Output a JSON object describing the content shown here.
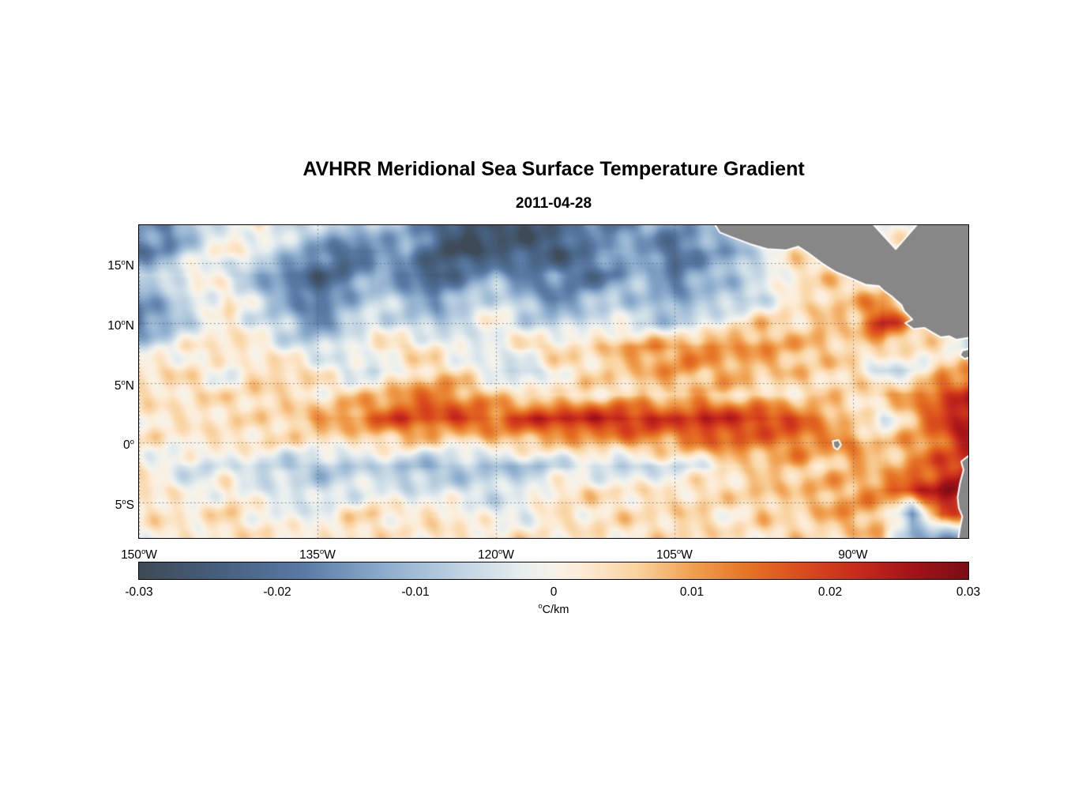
{
  "title": "AVHRR Meridional Sea Surface Temperature Gradient",
  "date": "2011-04-28",
  "colorbar": {
    "range": [
      -0.03,
      0.03
    ],
    "ticks": [
      {
        "value": -0.03,
        "label": "-0.03"
      },
      {
        "value": -0.02,
        "label": "-0.02"
      },
      {
        "value": -0.01,
        "label": "-0.01"
      },
      {
        "value": 0,
        "label": "0"
      },
      {
        "value": 0.01,
        "label": "0.01"
      },
      {
        "value": 0.02,
        "label": "0.02"
      },
      {
        "value": 0.03,
        "label": "0.03"
      }
    ],
    "unit": {
      "sup": "o",
      "text": "C/km"
    },
    "stops": [
      [
        -0.03,
        "#3e4a55"
      ],
      [
        -0.024,
        "#46607f"
      ],
      [
        -0.018,
        "#5a7ba6"
      ],
      [
        -0.012,
        "#8fafcf"
      ],
      [
        -0.006,
        "#c6d8e4"
      ],
      [
        -0.002,
        "#e9efef"
      ],
      [
        0,
        "#f7f3e8"
      ],
      [
        0.002,
        "#fcecd7"
      ],
      [
        0.006,
        "#f9d3a0"
      ],
      [
        0.01,
        "#f0a150"
      ],
      [
        0.014,
        "#e57425"
      ],
      [
        0.018,
        "#da4c1d"
      ],
      [
        0.022,
        "#c62a1c"
      ],
      [
        0.026,
        "#a31318"
      ],
      [
        0.03,
        "#7c0d14"
      ]
    ]
  },
  "chart_data": {
    "type": "heatmap",
    "title": "AVHRR Meridional Sea Surface Temperature Gradient",
    "subtitle": "2011-04-28",
    "value_units": "degC/km",
    "value_range": [
      -0.03,
      0.03
    ],
    "lon_range": [
      -150,
      -80.3
    ],
    "lat_range": [
      -8,
      18.2
    ],
    "grid_on": true,
    "grid_color": "#55616f",
    "lat_ticks": [
      {
        "value": 15,
        "text": "15",
        "hem": "N"
      },
      {
        "value": 10,
        "text": "10",
        "hem": "N"
      },
      {
        "value": 5,
        "text": "5",
        "hem": "N"
      },
      {
        "value": 0,
        "text": "0",
        "hem": ""
      },
      {
        "value": -5,
        "text": "5",
        "hem": "S"
      }
    ],
    "lon_ticks": [
      {
        "value": -150,
        "text": "150",
        "hem": "W"
      },
      {
        "value": -135,
        "text": "135",
        "hem": "W"
      },
      {
        "value": -120,
        "text": "120",
        "hem": "W"
      },
      {
        "value": -105,
        "text": "105",
        "hem": "W"
      },
      {
        "value": -90,
        "text": "90",
        "hem": "W"
      }
    ],
    "grid": {
      "lon_start": -150,
      "lon_step": 2.5,
      "lat_start": 18,
      "lat_step": -2,
      "values": [
        [
          -0.012,
          -0.018,
          -0.008,
          -0.003,
          0.002,
          -0.004,
          -0.006,
          -0.01,
          -0.008,
          -0.012,
          -0.02,
          -0.028,
          -0.026,
          -0.03,
          -0.022,
          -0.016,
          -0.02,
          -0.012,
          -0.018,
          -0.01,
          -0.006,
          0.003,
          0.002,
          0.001,
          0.001,
          0.001,
          0.001,
          0.001,
          0.001
        ],
        [
          -0.02,
          -0.015,
          -0.004,
          0.003,
          -0.002,
          -0.008,
          -0.015,
          -0.022,
          -0.018,
          -0.012,
          -0.025,
          -0.03,
          -0.027,
          -0.022,
          -0.028,
          -0.02,
          -0.01,
          -0.015,
          -0.022,
          -0.015,
          -0.014,
          -0.003,
          0.004,
          0.002,
          0.001,
          0.001,
          0.001,
          0.001,
          0.001
        ],
        [
          -0.008,
          -0.004,
          0.003,
          -0.005,
          -0.012,
          -0.018,
          -0.025,
          -0.02,
          -0.01,
          -0.02,
          -0.026,
          -0.018,
          -0.012,
          -0.02,
          -0.015,
          -0.022,
          -0.018,
          -0.008,
          -0.02,
          -0.012,
          -0.008,
          -0.004,
          0.003,
          0.006,
          0.002,
          0.001,
          -0.002,
          0.003,
          0.004
        ],
        [
          -0.015,
          -0.01,
          -0.003,
          0.004,
          -0.006,
          -0.014,
          -0.02,
          -0.012,
          -0.006,
          -0.01,
          -0.015,
          -0.008,
          -0.004,
          -0.01,
          -0.018,
          -0.012,
          -0.006,
          -0.01,
          -0.014,
          -0.008,
          -0.01,
          -0.004,
          0.002,
          0.005,
          0.008,
          0.01,
          -0.002,
          0.004,
          0.008
        ],
        [
          -0.02,
          -0.012,
          -0.004,
          0.002,
          -0.003,
          -0.008,
          -0.018,
          -0.008,
          -0.002,
          -0.006,
          -0.01,
          -0.004,
          0.002,
          -0.005,
          -0.008,
          -0.004,
          -0.002,
          -0.006,
          -0.008,
          -0.004,
          0.003,
          0.006,
          0.004,
          0.008,
          0.006,
          0.025,
          0.008,
          0.004,
          -0.006
        ],
        [
          -0.005,
          -0.002,
          0.003,
          0.005,
          0.002,
          -0.003,
          -0.006,
          -0.002,
          0.003,
          0.005,
          0.002,
          -0.004,
          -0.002,
          0.004,
          0.006,
          0.003,
          0.008,
          0.012,
          0.01,
          0.014,
          0.01,
          0.012,
          0.008,
          0.008,
          0.004,
          0.006,
          0.004,
          0.002,
          -0.006
        ],
        [
          0.003,
          0.005,
          0.002,
          -0.003,
          0.004,
          0.006,
          0.003,
          -0.004,
          -0.006,
          0.002,
          0.005,
          0.003,
          -0.005,
          -0.008,
          0.002,
          0.004,
          0.006,
          0.008,
          0.012,
          0.008,
          0.01,
          0.006,
          0.008,
          0.004,
          0.006,
          -0.006,
          -0.004,
          0.008,
          0.012
        ],
        [
          0.004,
          0.002,
          0.005,
          0.003,
          0.006,
          0.004,
          0.002,
          0.005,
          0.008,
          0.012,
          0.015,
          0.01,
          0.006,
          0.004,
          0.002,
          0.005,
          0.003,
          0.006,
          0.004,
          0.008,
          0.006,
          0.004,
          0.002,
          0.006,
          0.004,
          0.008,
          0.012,
          0.018,
          0.022
        ],
        [
          0.002,
          0.004,
          0.002,
          0.005,
          0.003,
          0.006,
          0.01,
          0.012,
          0.016,
          0.02,
          0.018,
          0.02,
          0.016,
          0.02,
          0.024,
          0.022,
          0.025,
          0.022,
          0.02,
          0.024,
          0.02,
          0.022,
          0.018,
          0.012,
          0.005,
          -0.004,
          0.008,
          0.02,
          0.028
        ],
        [
          0.003,
          0.001,
          0.004,
          0.002,
          0.005,
          0.002,
          0.004,
          0.002,
          0.004,
          0.006,
          0.004,
          0.002,
          0.006,
          0.008,
          0.006,
          0.01,
          0.008,
          0.012,
          0.01,
          0.014,
          0.016,
          0.012,
          0.015,
          0.012,
          0.012,
          0.006,
          0.01,
          0.015,
          0.025
        ],
        [
          0.002,
          -0.003,
          -0.005,
          -0.002,
          -0.006,
          -0.008,
          -0.01,
          -0.008,
          -0.006,
          -0.01,
          -0.012,
          -0.008,
          -0.01,
          -0.01,
          -0.006,
          -0.004,
          -0.008,
          -0.006,
          -0.004,
          -0.002,
          0.004,
          0.006,
          0.008,
          0.004,
          0.01,
          0.006,
          0.012,
          0.018,
          0.022
        ],
        [
          0.004,
          0.002,
          -0.003,
          0.003,
          -0.004,
          -0.002,
          -0.006,
          -0.004,
          -0.002,
          -0.005,
          -0.003,
          -0.006,
          -0.004,
          -0.002,
          0.003,
          0.005,
          0.002,
          0.004,
          0.002,
          0.006,
          0.004,
          0.008,
          0.006,
          0.01,
          0.008,
          0.014,
          0.02,
          0.026,
          0.03
        ],
        [
          0.002,
          0.004,
          0.002,
          0.005,
          0.002,
          -0.003,
          -0.002,
          0.003,
          0.005,
          0.002,
          0.004,
          0.002,
          -0.004,
          -0.002,
          0.004,
          0.002,
          0.005,
          0.003,
          0.006,
          0.004,
          0.002,
          0.006,
          0.004,
          0.008,
          0.012,
          0.006,
          -0.015,
          0.02,
          0.012
        ],
        [
          0.001,
          0.003,
          0.001,
          0.004,
          0.002,
          0.004,
          0.002,
          0.005,
          0.003,
          0.001,
          0.004,
          0.002,
          0.005,
          0.003,
          0.001,
          0.004,
          0.002,
          0.005,
          0.003,
          0.006,
          0.002,
          0.004,
          0.006,
          0.003,
          0.005,
          0.008,
          -0.01,
          -0.018,
          -0.012
        ]
      ]
    },
    "land": {
      "fill": "#878787",
      "coast": "#ffffff",
      "polygons": [
        {
          "name": "central-america",
          "points": [
            [
              -101.8,
              18.6
            ],
            [
              -101.2,
              17.6
            ],
            [
              -100.2,
              17.2
            ],
            [
              -98.6,
              16.6
            ],
            [
              -97.2,
              16.2
            ],
            [
              -95.6,
              16.1
            ],
            [
              -94.6,
              16.4
            ],
            [
              -93.8,
              15.9
            ],
            [
              -92.6,
              15.0
            ],
            [
              -91.5,
              14.3
            ],
            [
              -90.3,
              13.8
            ],
            [
              -88.9,
              13.2
            ],
            [
              -87.8,
              13.1
            ],
            [
              -87.4,
              12.7
            ],
            [
              -86.7,
              12.2
            ],
            [
              -85.9,
              11.5
            ],
            [
              -85.7,
              11.0
            ],
            [
              -85.0,
              10.3
            ],
            [
              -85.6,
              10.0
            ],
            [
              -84.9,
              9.5
            ],
            [
              -84.0,
              9.6
            ],
            [
              -83.3,
              9.2
            ],
            [
              -82.6,
              8.8
            ],
            [
              -81.9,
              8.9
            ],
            [
              -81.3,
              8.6
            ],
            [
              -80.0,
              8.8
            ],
            [
              -80.0,
              18.6
            ],
            [
              -84.3,
              18.6
            ],
            [
              -86.4,
              16.2
            ],
            [
              -88.6,
              18.6
            ]
          ]
        },
        {
          "name": "azuero-peninsula",
          "points": [
            [
              -80.0,
              7.9
            ],
            [
              -80.8,
              7.7
            ],
            [
              -81.0,
              7.3
            ],
            [
              -80.6,
              7.0
            ],
            [
              -80.0,
              7.2
            ]
          ]
        },
        {
          "name": "south-america",
          "points": [
            [
              -80.0,
              -0.9
            ],
            [
              -80.9,
              -1.6
            ],
            [
              -80.7,
              -2.3
            ],
            [
              -81.0,
              -3.4
            ],
            [
              -81.2,
              -4.6
            ],
            [
              -81.1,
              -5.5
            ],
            [
              -80.8,
              -6.2
            ],
            [
              -81.0,
              -7.2
            ],
            [
              -81.2,
              -8.4
            ],
            [
              -80.0,
              -8.4
            ]
          ]
        },
        {
          "name": "galapagos-islands",
          "points": [
            [
              -91.7,
              0.1
            ],
            [
              -91.2,
              0.2
            ],
            [
              -91.0,
              -0.2
            ],
            [
              -91.3,
              -0.6
            ],
            [
              -91.6,
              -0.4
            ]
          ]
        }
      ]
    }
  }
}
